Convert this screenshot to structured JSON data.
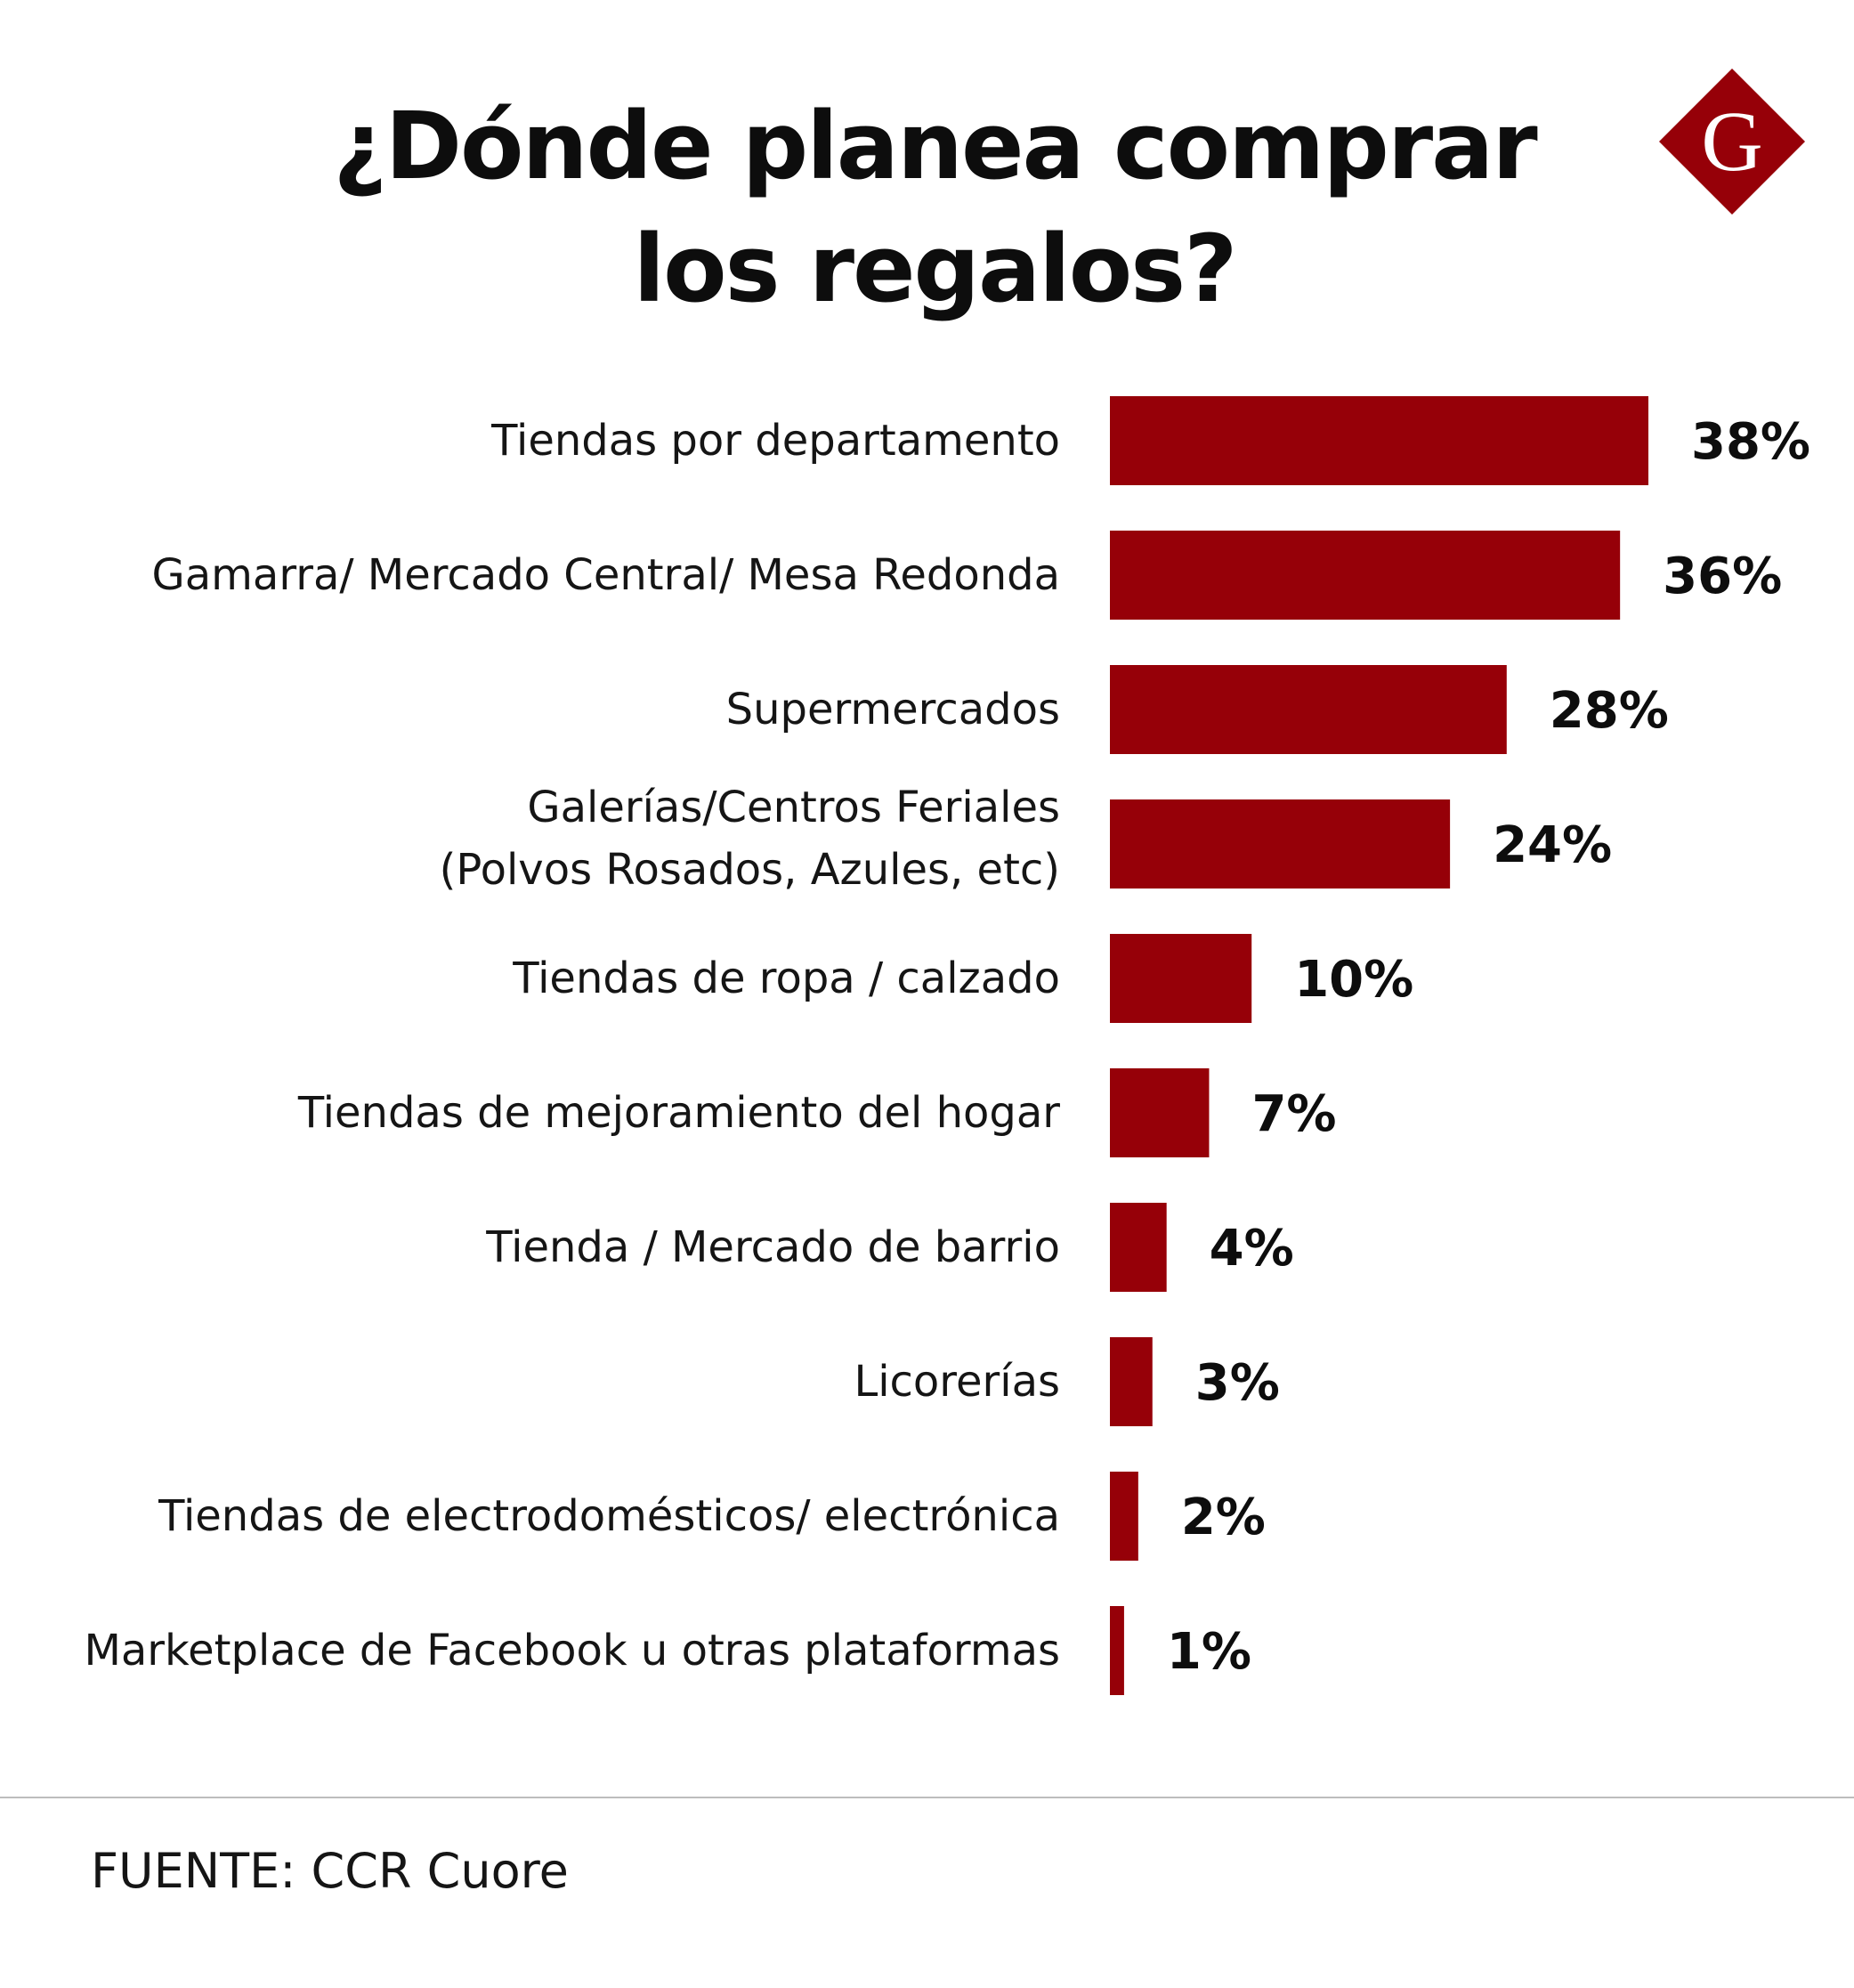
{
  "brand": {
    "logo_letter": "G",
    "accent_color": "#960008"
  },
  "chart_data": {
    "type": "bar",
    "orientation": "horizontal",
    "title": "¿Dónde planea comprar los regalos?",
    "title_lines": [
      "¿Dónde planea comprar",
      "los regalos?"
    ],
    "categories": [
      [
        "Tiendas por departamento"
      ],
      [
        "Gamarra/ Mercado Central/ Mesa Redonda"
      ],
      [
        "Supermercados"
      ],
      [
        "Galerías/Centros Feriales",
        "(Polvos Rosados, Azules, etc)"
      ],
      [
        "Tiendas de ropa / calzado"
      ],
      [
        "Tiendas de mejoramiento del hogar"
      ],
      [
        "Tienda / Mercado de barrio"
      ],
      [
        "Licorerías"
      ],
      [
        "Tiendas de electrodomésticos/ electrónica"
      ],
      [
        "Marketplace de Facebook u otras plataformas"
      ]
    ],
    "values": [
      38,
      36,
      28,
      24,
      10,
      7,
      4,
      3,
      2,
      1
    ],
    "value_labels": [
      "38%",
      "36%",
      "28%",
      "24%",
      "10%",
      "7%",
      "4%",
      "3%",
      "2%",
      "1%"
    ],
    "unit": "%",
    "bar_color": "#960008",
    "xlim": [
      0,
      38
    ],
    "grid": false,
    "legend": "none",
    "xlabel": "",
    "ylabel": ""
  },
  "footer": {
    "source": "FUENTE: CCR Cuore"
  }
}
